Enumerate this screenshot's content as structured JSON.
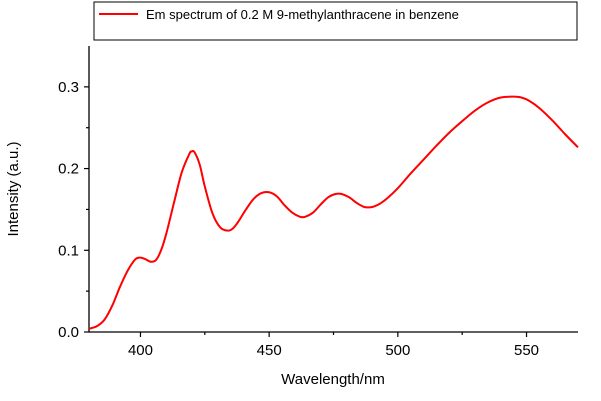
{
  "chart_data": {
    "type": "line",
    "title": "",
    "xlabel": "Wavelength/nm",
    "ylabel": "Intensity (a.u.)",
    "xlim": [
      380,
      570
    ],
    "ylim": [
      0,
      0.35
    ],
    "x_ticks": [
      400,
      450,
      500,
      550
    ],
    "x_tick_labels": [
      "400",
      "450",
      "500",
      "550"
    ],
    "y_ticks": [
      0.0,
      0.1,
      0.2,
      0.3
    ],
    "y_tick_labels": [
      "0.0",
      "0.1",
      "0.2",
      "0.3"
    ],
    "grid": false,
    "legend_position": "top",
    "series": [
      {
        "name": "Em spectrum of 0.2 M 9-methylanthracene in benzene",
        "color": "#ff0000",
        "x": [
          380,
          383,
          386,
          389,
          392,
          395,
          398,
          400,
          402,
          404,
          406,
          408,
          410,
          413,
          416,
          419,
          420,
          421,
          423,
          425,
          428,
          431,
          434,
          436,
          438,
          441,
          444,
          447,
          450,
          453,
          456,
          459,
          462,
          464,
          467,
          470,
          473,
          476,
          478,
          481,
          484,
          487,
          490,
          493,
          496,
          500,
          505,
          510,
          515,
          520,
          525,
          530,
          535,
          540,
          545,
          548,
          551,
          555,
          560,
          565,
          570
        ],
        "y": [
          0.004,
          0.007,
          0.015,
          0.032,
          0.055,
          0.075,
          0.089,
          0.091,
          0.089,
          0.086,
          0.088,
          0.1,
          0.12,
          0.158,
          0.195,
          0.218,
          0.221,
          0.22,
          0.205,
          0.178,
          0.145,
          0.128,
          0.124,
          0.127,
          0.135,
          0.15,
          0.163,
          0.17,
          0.171,
          0.166,
          0.155,
          0.146,
          0.141,
          0.141,
          0.146,
          0.156,
          0.165,
          0.169,
          0.169,
          0.165,
          0.158,
          0.153,
          0.153,
          0.157,
          0.164,
          0.176,
          0.194,
          0.211,
          0.228,
          0.244,
          0.258,
          0.271,
          0.281,
          0.287,
          0.288,
          0.287,
          0.283,
          0.274,
          0.259,
          0.242,
          0.226
        ]
      }
    ]
  }
}
